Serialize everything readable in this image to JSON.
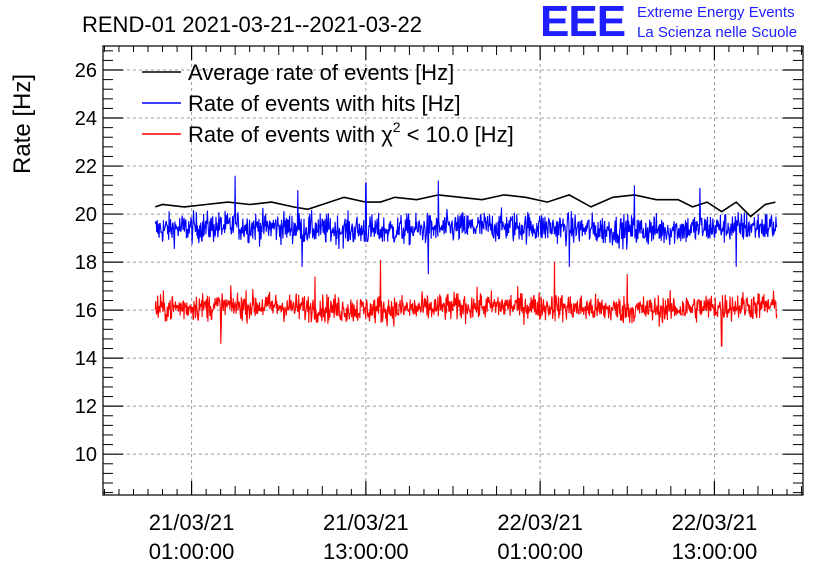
{
  "logo": {
    "mark": "EEE",
    "line1": "Extreme Energy Events",
    "line2": "La Scienza nelle Scuole",
    "color": "#1e1eff"
  },
  "chart_data": {
    "type": "line",
    "title": "REND-01 2021-03-21--2021-03-22",
    "xlabel": "",
    "ylabel": "Rate [Hz]",
    "x_unit": "hours since 2021-03-21 00:00:00",
    "xlim": [
      -5.1,
      43.1
    ],
    "ylim": [
      8.3,
      27.0
    ],
    "yticks": [
      10,
      12,
      14,
      16,
      18,
      20,
      22,
      24,
      26
    ],
    "xticks": [
      {
        "x": 1,
        "date": "21/03/21",
        "time": "01:00:00"
      },
      {
        "x": 13,
        "date": "21/03/21",
        "time": "13:00:00"
      },
      {
        "x": 25,
        "date": "22/03/21",
        "time": "01:00:00"
      },
      {
        "x": 37,
        "date": "22/03/21",
        "time": "13:00:00"
      }
    ],
    "grid": true,
    "legend_position": "top-left",
    "series": [
      {
        "name": "Average rate of events [Hz]",
        "legend_prefix": "Average rate of events [Hz]",
        "legend_sup": "",
        "legend_suffix": "",
        "color": "#000000",
        "x": [
          -1.5,
          -1.0,
          0.5,
          2.0,
          3.5,
          5.0,
          6.5,
          8.0,
          9.0,
          10.0,
          11.5,
          13.0,
          14.0,
          15.0,
          16.5,
          18.0,
          19.5,
          21.0,
          22.5,
          24.0,
          25.5,
          27.0,
          28.5,
          30.0,
          31.5,
          33.0,
          34.5,
          35.5,
          36.5,
          37.5,
          38.5,
          39.5,
          40.5,
          41.2
        ],
        "y": [
          20.3,
          20.4,
          20.3,
          20.4,
          20.5,
          20.4,
          20.5,
          20.3,
          20.2,
          20.4,
          20.7,
          20.5,
          20.5,
          20.7,
          20.6,
          20.8,
          20.7,
          20.6,
          20.8,
          20.7,
          20.5,
          20.8,
          20.3,
          20.7,
          20.8,
          20.6,
          20.6,
          20.3,
          20.5,
          20.1,
          20.5,
          19.9,
          20.4,
          20.5
        ],
        "noise_amplitude": 0
      },
      {
        "name": "Rate of events with hits [Hz]",
        "legend_prefix": "Rate of events with hits [Hz]",
        "legend_sup": "",
        "legend_suffix": "",
        "color": "#0000ff",
        "x_start": -1.5,
        "x_end": 41.3,
        "base": 19.4,
        "noise_amplitude": 0.55,
        "spikes": [
          {
            "x": 4.0,
            "y": 21.6
          },
          {
            "x": 8.3,
            "y": 21.0
          },
          {
            "x": 8.6,
            "y": 17.8
          },
          {
            "x": 13.0,
            "y": 21.3
          },
          {
            "x": 17.3,
            "y": 17.5
          },
          {
            "x": 18.0,
            "y": 21.4
          },
          {
            "x": 27.0,
            "y": 17.8
          },
          {
            "x": 31.5,
            "y": 21.2
          },
          {
            "x": 36.0,
            "y": 21.1
          },
          {
            "x": 38.5,
            "y": 17.8
          }
        ]
      },
      {
        "name": "Rate of events with χ² < 10.0 [Hz]",
        "legend_prefix": "Rate of events with χ",
        "legend_sup": "2",
        "legend_suffix": " < 10.0 [Hz]",
        "color": "#ff0000",
        "x_start": -1.5,
        "x_end": 41.3,
        "base": 16.1,
        "noise_amplitude": 0.5,
        "spikes": [
          {
            "x": 14.0,
            "y": 18.1
          },
          {
            "x": 26.0,
            "y": 18.0
          },
          {
            "x": 3.0,
            "y": 14.6
          },
          {
            "x": 37.5,
            "y": 14.5
          },
          {
            "x": 9.5,
            "y": 17.4
          },
          {
            "x": 31.0,
            "y": 17.5
          }
        ]
      }
    ]
  }
}
